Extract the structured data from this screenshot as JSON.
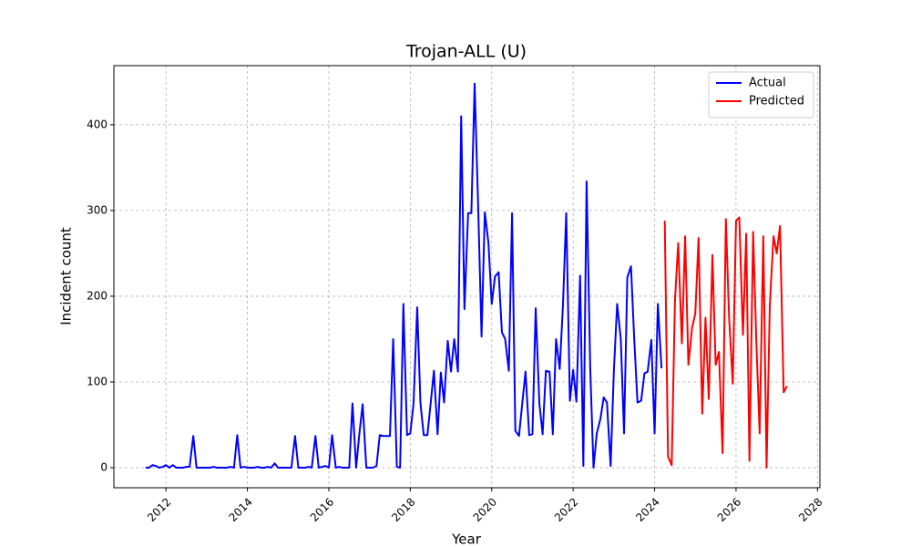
{
  "chart_data": {
    "type": "line",
    "title": "Trojan-ALL (U)",
    "xlabel": "Year",
    "ylabel": "Incident count",
    "xlim": [
      2010.72,
      2028.06
    ],
    "xticks": [
      2012,
      2014,
      2016,
      2018,
      2020,
      2022,
      2024,
      2026,
      2028
    ],
    "ylim": [
      -23.4,
      469
    ],
    "yticks": [
      0,
      100,
      200,
      300,
      400
    ],
    "grid": true,
    "legend": "upper right",
    "series": [
      {
        "name": "Actual",
        "color": "#0000ff",
        "x": [
          2011.5,
          2011.58,
          2011.67,
          2011.75,
          2011.83,
          2011.92,
          2012,
          2012.08,
          2012.17,
          2012.25,
          2012.33,
          2012.42,
          2012.5,
          2012.58,
          2012.67,
          2012.75,
          2012.83,
          2012.92,
          2013,
          2013.08,
          2013.17,
          2013.25,
          2013.33,
          2013.42,
          2013.5,
          2013.58,
          2013.67,
          2013.75,
          2013.83,
          2013.92,
          2014,
          2014.08,
          2014.17,
          2014.25,
          2014.33,
          2014.42,
          2014.5,
          2014.58,
          2014.67,
          2014.75,
          2014.83,
          2014.92,
          2015,
          2015.08,
          2015.17,
          2015.25,
          2015.33,
          2015.42,
          2015.5,
          2015.58,
          2015.67,
          2015.75,
          2015.83,
          2015.92,
          2016,
          2016.08,
          2016.17,
          2016.25,
          2016.33,
          2016.42,
          2016.5,
          2016.58,
          2016.67,
          2016.75,
          2016.83,
          2016.92,
          2017,
          2017.08,
          2017.17,
          2017.25,
          2017.33,
          2017.42,
          2017.5,
          2017.58,
          2017.67,
          2017.75,
          2017.83,
          2017.92,
          2018,
          2018.08,
          2018.17,
          2018.25,
          2018.33,
          2018.42,
          2018.5,
          2018.58,
          2018.67,
          2018.75,
          2018.83,
          2018.92,
          2019,
          2019.08,
          2019.17,
          2019.25,
          2019.33,
          2019.42,
          2019.5,
          2019.58,
          2019.67,
          2019.75,
          2019.83,
          2019.92,
          2020,
          2020.08,
          2020.17,
          2020.25,
          2020.33,
          2020.42,
          2020.5,
          2020.58,
          2020.67,
          2020.75,
          2020.83,
          2020.92,
          2021,
          2021.08,
          2021.17,
          2021.25,
          2021.33,
          2021.42,
          2021.5,
          2021.58,
          2021.67,
          2021.75,
          2021.83,
          2021.92,
          2022,
          2022.08,
          2022.17,
          2022.25,
          2022.33,
          2022.42,
          2022.5,
          2022.58,
          2022.67,
          2022.75,
          2022.83,
          2022.92,
          2023,
          2023.08,
          2023.17,
          2023.25,
          2023.33,
          2023.42,
          2023.5,
          2023.58,
          2023.67,
          2023.75,
          2023.83,
          2023.92,
          2024,
          2024.08,
          2024.17
        ],
        "values": [
          0,
          0,
          3,
          2,
          0,
          1,
          3,
          0,
          3,
          0,
          0,
          0,
          1,
          1,
          37,
          0,
          0,
          0,
          0,
          0,
          1,
          0,
          0,
          0,
          0,
          1,
          0,
          38,
          0,
          1,
          0,
          0,
          0,
          1,
          0,
          0,
          1,
          0,
          5,
          0,
          0,
          0,
          0,
          0,
          37,
          0,
          0,
          0,
          1,
          0,
          37,
          0,
          1,
          2,
          0,
          38,
          0,
          1,
          0,
          0,
          0,
          75,
          0,
          40,
          74,
          0,
          0,
          0,
          2,
          38,
          37,
          37,
          37,
          150,
          1,
          0,
          191,
          38,
          40,
          75,
          187,
          75,
          38,
          38,
          75,
          113,
          39,
          111,
          76,
          148,
          112,
          150,
          112,
          410,
          185,
          297,
          297,
          448,
          300,
          153,
          298,
          262,
          191,
          223,
          228,
          158,
          150,
          113,
          297,
          43,
          37,
          75,
          112,
          38,
          39,
          186,
          75,
          39,
          113,
          112,
          39,
          150,
          115,
          190,
          297,
          78,
          114,
          77,
          224,
          2,
          334,
          115,
          0,
          40,
          57,
          82,
          76,
          2,
          113,
          191,
          150,
          40,
          222,
          235,
          150,
          76,
          78,
          110,
          112,
          149,
          40,
          191,
          116
        ]
      },
      {
        "name": "Predicted",
        "color": "#ff0000",
        "x": [
          2024.25,
          2024.33,
          2024.42,
          2024.5,
          2024.58,
          2024.67,
          2024.75,
          2024.83,
          2024.92,
          2025,
          2025.08,
          2025.17,
          2025.25,
          2025.33,
          2025.42,
          2025.5,
          2025.58,
          2025.67,
          2025.75,
          2025.83,
          2025.92,
          2026,
          2026.08,
          2026.17,
          2026.25,
          2026.33,
          2026.42,
          2026.5,
          2026.58,
          2026.67,
          2026.75,
          2026.83,
          2026.92,
          2027,
          2027.08,
          2027.17,
          2027.25
        ],
        "values": [
          288,
          13,
          3,
          195,
          262,
          145,
          270,
          120,
          163,
          180,
          268,
          63,
          175,
          80,
          248,
          120,
          135,
          17,
          290,
          175,
          98,
          288,
          292,
          155,
          273,
          8,
          275,
          145,
          40,
          270,
          0,
          190,
          270,
          250,
          282,
          88,
          95
        ]
      }
    ]
  }
}
